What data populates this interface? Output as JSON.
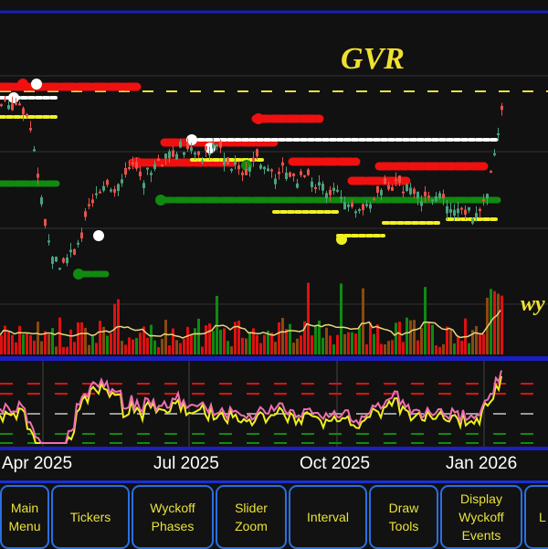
{
  "chart_data": {
    "type": "candlestick",
    "title": "GVR",
    "watermark": "wy",
    "x_tick_labels": [
      "Apr 2025",
      "Jul 2025",
      "Oct 2025",
      "Jan 2026"
    ],
    "grid": true,
    "price_close_approx": [
      185,
      185,
      190,
      160,
      100,
      30,
      10,
      20,
      30,
      60,
      90,
      100,
      95,
      110,
      115,
      105,
      120,
      125,
      130,
      140,
      135,
      130,
      135,
      145,
      120,
      115,
      110,
      125,
      115,
      110,
      115,
      105,
      110,
      100,
      95,
      90,
      85,
      80,
      60,
      80,
      90,
      95,
      100,
      90,
      85,
      90,
      85,
      75,
      65,
      70,
      65,
      80,
      130,
      200
    ],
    "colors": {
      "up": "#4aa37e",
      "down": "#e8524a",
      "volume_avg": "#e8d77a",
      "osc_fast": "#f070b0",
      "osc_slow": "#f0f020",
      "overbought": "#e01010",
      "oversold": "#108a10",
      "midline": "#9a9a9a",
      "reference_level": "#e8e23a"
    }
  },
  "buttons": [
    {
      "label": "Main\nMenu"
    },
    {
      "label": "Tickers"
    },
    {
      "label": "Wyckoff\nPhases"
    },
    {
      "label": "Slider\nZoom"
    },
    {
      "label": "Interval"
    },
    {
      "label": "Draw\nTools"
    },
    {
      "label": "Display\nWyckoff\nEvents"
    },
    {
      "label": "L"
    }
  ]
}
